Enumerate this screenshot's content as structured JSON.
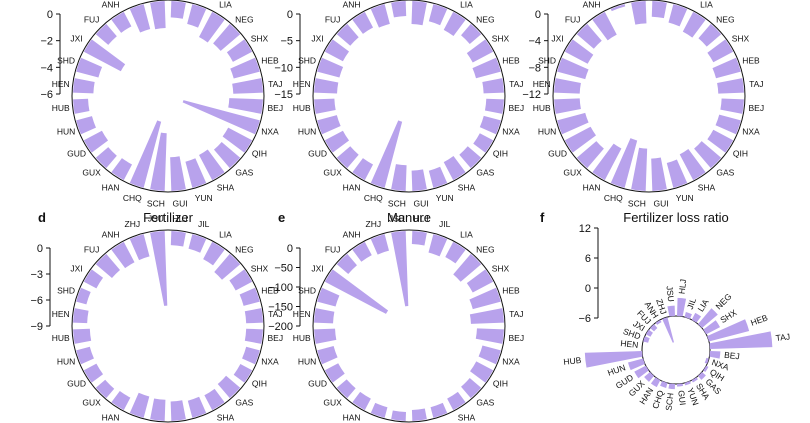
{
  "bar_color": "#b8a2ec",
  "chart_data": [
    {
      "type": "radial-bar",
      "letter": "",
      "title": "",
      "ylim": [
        -6,
        0
      ],
      "ticks": [
        0,
        -2,
        -4,
        -6
      ],
      "categories": [
        "HLJ",
        "JIL",
        "LIA",
        "NEG",
        "SHX",
        "HEB",
        "TAJ",
        "BEJ",
        "NXA",
        "QIH",
        "GAS",
        "SHA",
        "YUN",
        "GUI",
        "SCH",
        "CHQ",
        "HAN",
        "GUX",
        "GUD",
        "HUN",
        "HUB",
        "HEN",
        "SHD",
        "JXI",
        "FUJ",
        "ANH",
        "ZHJ",
        "JSU"
      ],
      "values": [
        -1.3,
        -1.6,
        -2.2,
        -2.0,
        -1.7,
        -2.1,
        -2.3,
        -2.6,
        -6.0,
        -2.1,
        -1.9,
        -2.2,
        -2.1,
        -2.6,
        -4.4,
        -5.2,
        -1.4,
        -1.3,
        -1.6,
        -1.3,
        -1.2,
        -1.6,
        -1.8,
        -3.2,
        -1.3,
        -1.3,
        -2.0,
        -2.1
      ]
    },
    {
      "type": "radial-bar",
      "letter": "",
      "title": "",
      "ylim": [
        -15,
        0
      ],
      "ticks": [
        0,
        -5,
        -10,
        -15
      ],
      "categories": [
        "HLJ",
        "JIL",
        "LIA",
        "NEG",
        "SHX",
        "HEB",
        "TAJ",
        "BEJ",
        "NXA",
        "QIH",
        "GAS",
        "SHA",
        "YUN",
        "GUI",
        "SCH",
        "CHQ",
        "HAN",
        "GUX",
        "GUD",
        "HUN",
        "HUB",
        "HEN",
        "SHD",
        "JXI",
        "FUJ",
        "ANH",
        "ZHJ",
        "JSU"
      ],
      "values": [
        -4.5,
        -3.5,
        -4.0,
        -3.0,
        -4.5,
        -5.0,
        -4.0,
        -3.5,
        -3.5,
        -3.0,
        -3.5,
        -4.0,
        -3.5,
        -4.0,
        -5.0,
        -13.0,
        -3.5,
        -3.5,
        -4.0,
        -4.0,
        -4.0,
        -4.5,
        -4.5,
        -4.0,
        -3.5,
        -3.5,
        -4.0,
        -3.0
      ]
    },
    {
      "type": "radial-bar",
      "letter": "",
      "title": "",
      "ylim": [
        -12,
        0
      ],
      "ticks": [
        0,
        -4,
        -8,
        -12
      ],
      "categories": [
        "HLJ",
        "JIL",
        "LIA",
        "NEG",
        "SHX",
        "HEB",
        "TAJ",
        "BEJ",
        "NXA",
        "QIH",
        "GAS",
        "SHA",
        "YUN",
        "GUI",
        "SCH",
        "CHQ",
        "HAN",
        "GUX",
        "GUD",
        "HUN",
        "HUB",
        "HEN",
        "SHD",
        "JXI",
        "FUJ",
        "ANH",
        "ZHJ",
        "JSU"
      ],
      "values": [
        -2.5,
        -3.0,
        -3.5,
        -3.0,
        -3.5,
        -4.0,
        -4.0,
        -3.5,
        -3.5,
        -3.5,
        -4.0,
        -4.5,
        -4.0,
        -5.0,
        -6.5,
        -7.5,
        -5.5,
        -4.0,
        -4.5,
        -4.5,
        -4.0,
        -4.0,
        -4.5,
        -4.0,
        -3.5,
        -4.0,
        -0.5,
        -3.5
      ]
    },
    {
      "type": "radial-bar",
      "letter": "d",
      "title": "Fertilizer",
      "ylim": [
        -9,
        0
      ],
      "ticks": [
        0,
        -3,
        -6,
        -9
      ],
      "categories": [
        "HLJ",
        "JIL",
        "LIA",
        "NEG",
        "SHX",
        "HEB",
        "TAJ",
        "BEJ",
        "NXA",
        "QIH",
        "GAS",
        "SHA",
        "YUN",
        "GUI",
        "SCH",
        "CHQ",
        "HAN",
        "GUX",
        "GUD",
        "HUN",
        "HUB",
        "HEN",
        "SHD",
        "JXI",
        "FUJ",
        "ANH",
        "ZHJ",
        "JSU"
      ],
      "values": [
        -1.7,
        -1.8,
        -2.3,
        -2.8,
        -2.2,
        -2.0,
        -2.0,
        -2.0,
        -1.7,
        -1.6,
        -2.2,
        -2.0,
        -2.1,
        -2.3,
        -2.5,
        -2.6,
        -1.7,
        -1.5,
        -1.7,
        -1.7,
        -2.0,
        -1.7,
        -1.3,
        -1.7,
        -2.5,
        -2.7,
        -2.7,
        -8.5
      ]
    },
    {
      "type": "radial-bar",
      "letter": "e",
      "title": "Manure",
      "ylim": [
        -200,
        0
      ],
      "ticks": [
        0,
        -50,
        -100,
        -150,
        -200
      ],
      "categories": [
        "HLJ",
        "JIL",
        "LIA",
        "NEG",
        "SHX",
        "HEB",
        "TAJ",
        "BEJ",
        "NXA",
        "QIH",
        "GAS",
        "SHA",
        "YUN",
        "GUI",
        "SCH",
        "CHQ",
        "HAN",
        "GUX",
        "GUD",
        "HUN",
        "HUB",
        "HEN",
        "SHD",
        "JXI",
        "FUJ",
        "ANH",
        "ZHJ",
        "JSU"
      ],
      "values": [
        -35,
        -50,
        -45,
        -70,
        -60,
        -75,
        -85,
        -70,
        -50,
        -50,
        -40,
        -35,
        -30,
        -30,
        -25,
        -30,
        -35,
        -35,
        -40,
        -45,
        -55,
        -50,
        -50,
        -175,
        -40,
        -40,
        -45,
        -190
      ]
    },
    {
      "type": "radial-bar",
      "letter": "f",
      "title": "Fertilizer loss ratio",
      "ylim": [
        -6,
        12
      ],
      "ticks": [
        12,
        6,
        0,
        -6
      ],
      "categories": [
        "HLJ",
        "JIL",
        "LIA",
        "NEG",
        "SHX",
        "HEB",
        "TAJ",
        "BEJ",
        "NXA",
        "QIH",
        "GAS",
        "SHA",
        "YUN",
        "GUI",
        "SCH",
        "CHQ",
        "HAN",
        "GUX",
        "GUD",
        "HUN",
        "HUB",
        "HEN",
        "SHD",
        "JXI",
        "FUJ",
        "ANH",
        "ZHJ",
        "JSU"
      ],
      "values": [
        3.5,
        1.0,
        1.5,
        4.0,
        3.0,
        8.0,
        12.0,
        2.0,
        -0.5,
        0.5,
        1.0,
        0.5,
        0.5,
        0.5,
        1.0,
        1.0,
        1.5,
        1.5,
        2.5,
        3.0,
        11.0,
        0.0,
        -1.0,
        -1.0,
        -1.0,
        -0.5,
        -5.0,
        2.0
      ]
    }
  ]
}
